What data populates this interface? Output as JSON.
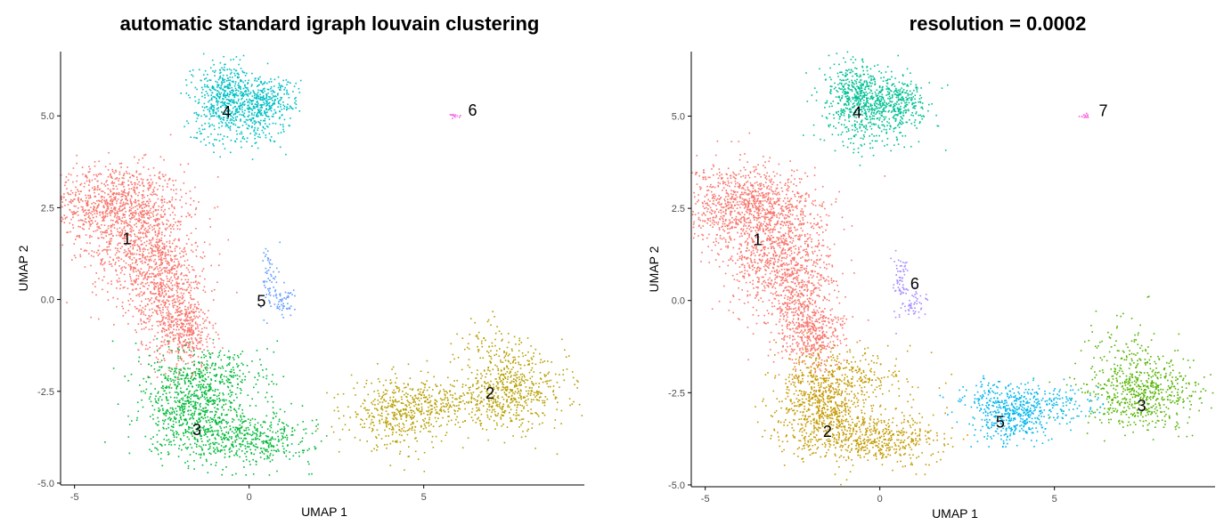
{
  "chart_data": [
    {
      "type": "scatter",
      "title": "automatic standard igraph louvain clustering",
      "xlabel": "UMAP 1",
      "ylabel": "UMAP 2",
      "xlim": [
        -5.4,
        9.6
      ],
      "ylim": [
        -5.05,
        6.75
      ],
      "x_ticks": [
        -5,
        0,
        5
      ],
      "y_ticks": [
        -5.0,
        -2.5,
        0.0,
        2.5,
        5.0
      ],
      "x_tick_labels": [
        "-5",
        "0",
        "5"
      ],
      "y_tick_labels": [
        "-5.0",
        "-2.5",
        "0.0",
        "2.5",
        "5.0"
      ],
      "grid": false,
      "legend": "none",
      "clusters": [
        {
          "label": "1",
          "color": "#F8766D",
          "label_pos": [
            -3.5,
            1.65
          ],
          "blobs": [
            {
              "cx": -3.9,
              "cy": 2.6,
              "sx": 1.0,
              "sy": 0.55,
              "n": 900
            },
            {
              "cx": -3.0,
              "cy": 1.3,
              "sx": 0.75,
              "sy": 0.75,
              "n": 700
            },
            {
              "cx": -2.3,
              "cy": 0.0,
              "sx": 0.5,
              "sy": 0.8,
              "n": 500
            },
            {
              "cx": -1.8,
              "cy": -0.9,
              "sx": 0.4,
              "sy": 0.5,
              "n": 300
            }
          ]
        },
        {
          "label": "2",
          "color": "#B79F00",
          "label_pos": [
            6.9,
            -2.55
          ],
          "blobs": [
            {
              "cx": 7.5,
              "cy": -2.5,
              "sx": 0.8,
              "sy": 0.5,
              "n": 550
            },
            {
              "cx": 4.3,
              "cy": -3.1,
              "sx": 0.7,
              "sy": 0.45,
              "n": 450
            },
            {
              "cx": 5.8,
              "cy": -2.8,
              "sx": 0.7,
              "sy": 0.3,
              "n": 150
            },
            {
              "cx": 7.0,
              "cy": -1.3,
              "sx": 0.5,
              "sy": 0.4,
              "n": 80
            }
          ]
        },
        {
          "label": "3",
          "color": "#00BA38",
          "label_pos": [
            -1.5,
            -3.55
          ],
          "blobs": [
            {
              "cx": -1.6,
              "cy": -3.0,
              "sx": 0.7,
              "sy": 0.6,
              "n": 700
            },
            {
              "cx": 0.0,
              "cy": -3.8,
              "sx": 0.9,
              "sy": 0.35,
              "n": 450
            },
            {
              "cx": -1.0,
              "cy": -2.0,
              "sx": 0.9,
              "sy": 0.4,
              "n": 250
            }
          ]
        },
        {
          "label": "4",
          "color": "#00BFC4",
          "label_pos": [
            -0.65,
            5.1
          ],
          "blobs": [
            {
              "cx": -0.7,
              "cy": 5.6,
              "sx": 0.45,
              "sy": 0.45,
              "n": 450
            },
            {
              "cx": 0.4,
              "cy": 5.35,
              "sx": 0.5,
              "sy": 0.35,
              "n": 350
            },
            {
              "cx": -0.3,
              "cy": 4.7,
              "sx": 0.7,
              "sy": 0.4,
              "n": 150
            }
          ]
        },
        {
          "label": "5",
          "color": "#619CFF",
          "label_pos": [
            0.35,
            -0.05
          ],
          "blobs": [
            {
              "cx": 0.6,
              "cy": 0.6,
              "sx": 0.12,
              "sy": 0.45,
              "n": 60
            },
            {
              "cx": 1.0,
              "cy": -0.1,
              "sx": 0.2,
              "sy": 0.2,
              "n": 50
            }
          ]
        },
        {
          "label": "6",
          "color": "#F564E3",
          "label_pos": [
            6.4,
            5.15
          ],
          "blobs": [
            {
              "cx": 5.9,
              "cy": 5.0,
              "sx": 0.08,
              "sy": 0.04,
              "n": 12
            }
          ]
        }
      ]
    },
    {
      "type": "scatter",
      "title": "resolution = 0.0002",
      "xlabel": "UMAP 1",
      "ylabel": "UMAP 2",
      "xlim": [
        -5.4,
        9.6
      ],
      "ylim": [
        -5.05,
        6.75
      ],
      "x_ticks": [
        -5,
        0,
        5
      ],
      "y_ticks": [
        -5.0,
        -2.5,
        0.0,
        2.5,
        5.0
      ],
      "x_tick_labels": [
        "-5",
        "0",
        "5"
      ],
      "y_tick_labels": [
        "-5.0",
        "-2.5",
        "0.0",
        "2.5",
        "5.0"
      ],
      "grid": false,
      "legend": "none",
      "clusters": [
        {
          "label": "1",
          "color": "#F8766D",
          "label_pos": [
            -3.5,
            1.65
          ],
          "blobs": [
            {
              "cx": -3.9,
              "cy": 2.6,
              "sx": 1.0,
              "sy": 0.55,
              "n": 900
            },
            {
              "cx": -3.0,
              "cy": 1.3,
              "sx": 0.75,
              "sy": 0.75,
              "n": 700
            },
            {
              "cx": -2.3,
              "cy": 0.0,
              "sx": 0.5,
              "sy": 0.8,
              "n": 500
            },
            {
              "cx": -1.8,
              "cy": -0.9,
              "sx": 0.4,
              "sy": 0.5,
              "n": 300
            }
          ]
        },
        {
          "label": "2",
          "color": "#C49A00",
          "label_pos": [
            -1.5,
            -3.55
          ],
          "blobs": [
            {
              "cx": -1.6,
              "cy": -3.0,
              "sx": 0.7,
              "sy": 0.6,
              "n": 700
            },
            {
              "cx": 0.0,
              "cy": -3.8,
              "sx": 0.9,
              "sy": 0.35,
              "n": 450
            },
            {
              "cx": -1.0,
              "cy": -2.0,
              "sx": 0.9,
              "sy": 0.4,
              "n": 250
            }
          ]
        },
        {
          "label": "3",
          "color": "#53B400",
          "label_pos": [
            7.5,
            -2.85
          ],
          "blobs": [
            {
              "cx": 7.5,
              "cy": -2.5,
              "sx": 0.8,
              "sy": 0.5,
              "n": 600
            },
            {
              "cx": 7.0,
              "cy": -1.3,
              "sx": 0.5,
              "sy": 0.4,
              "n": 80
            }
          ]
        },
        {
          "label": "4",
          "color": "#00C094",
          "label_pos": [
            -0.65,
            5.1
          ],
          "blobs": [
            {
              "cx": -0.7,
              "cy": 5.6,
              "sx": 0.45,
              "sy": 0.45,
              "n": 450
            },
            {
              "cx": 0.4,
              "cy": 5.35,
              "sx": 0.5,
              "sy": 0.35,
              "n": 350
            },
            {
              "cx": -0.3,
              "cy": 4.7,
              "sx": 0.7,
              "sy": 0.4,
              "n": 150
            }
          ]
        },
        {
          "label": "5",
          "color": "#00B6EB",
          "label_pos": [
            3.45,
            -3.3
          ],
          "blobs": [
            {
              "cx": 3.8,
              "cy": -3.1,
              "sx": 0.5,
              "sy": 0.4,
              "n": 450
            },
            {
              "cx": 5.1,
              "cy": -2.8,
              "sx": 0.6,
              "sy": 0.25,
              "n": 120
            },
            {
              "cx": 2.9,
              "cy": -2.6,
              "sx": 0.5,
              "sy": 0.2,
              "n": 60
            }
          ]
        },
        {
          "label": "6",
          "color": "#A58AFF",
          "label_pos": [
            1.0,
            0.45
          ],
          "blobs": [
            {
              "cx": 0.6,
              "cy": 0.6,
              "sx": 0.12,
              "sy": 0.45,
              "n": 60
            },
            {
              "cx": 1.0,
              "cy": -0.1,
              "sx": 0.2,
              "sy": 0.2,
              "n": 50
            }
          ]
        },
        {
          "label": "7",
          "color": "#FB61D7",
          "label_pos": [
            6.4,
            5.15
          ],
          "blobs": [
            {
              "cx": 5.9,
              "cy": 5.0,
              "sx": 0.08,
              "sy": 0.04,
              "n": 12
            }
          ]
        }
      ]
    }
  ]
}
